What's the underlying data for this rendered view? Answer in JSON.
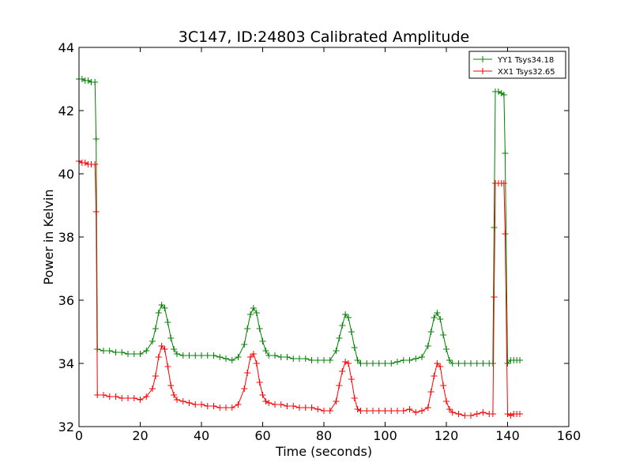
{
  "chart_data": {
    "type": "line",
    "title": "3C147, ID:24803 Calibrated Amplitude",
    "xlabel": "Time (seconds)",
    "ylabel": "Power in Kelvin",
    "xlim": [
      0,
      160
    ],
    "ylim": [
      32,
      44
    ],
    "xticks": [
      "0",
      "20",
      "40",
      "60",
      "80",
      "100",
      "120",
      "140",
      "160"
    ],
    "yticks": [
      "32",
      "34",
      "36",
      "38",
      "40",
      "42",
      "44"
    ],
    "grid": false,
    "legend_position": "top-right",
    "marker": "+",
    "series": [
      {
        "name": "YY1 Tsys34.18",
        "color": "#008000",
        "x": [
          0,
          1,
          2,
          3,
          4,
          5.2,
          5.6,
          6,
          8,
          10,
          12,
          14,
          16,
          18,
          20,
          22,
          24,
          25,
          26,
          27,
          28,
          29,
          30,
          31,
          32,
          34,
          36,
          38,
          40,
          42,
          44,
          46,
          48,
          50,
          52,
          54,
          55,
          56,
          57,
          58,
          59,
          60,
          61,
          62,
          64,
          66,
          68,
          70,
          72,
          74,
          76,
          78,
          80,
          82,
          84,
          85,
          86,
          87,
          88,
          89,
          90,
          91,
          92,
          94,
          96,
          98,
          100,
          102,
          104,
          106,
          108,
          110,
          112,
          114,
          115,
          116,
          117,
          118,
          119,
          120,
          121,
          122,
          124,
          126,
          128,
          130,
          132,
          134,
          135.2,
          135.6,
          136,
          137,
          138,
          138.8,
          139.2,
          140,
          141,
          142,
          143,
          144
        ],
        "y": [
          43.0,
          43.0,
          42.95,
          42.95,
          42.9,
          42.9,
          41.1,
          34.45,
          34.4,
          34.4,
          34.35,
          34.35,
          34.3,
          34.3,
          34.3,
          34.4,
          34.7,
          35.1,
          35.6,
          35.85,
          35.75,
          35.3,
          34.8,
          34.45,
          34.3,
          34.25,
          34.25,
          34.25,
          34.25,
          34.25,
          34.25,
          34.2,
          34.15,
          34.1,
          34.2,
          34.6,
          35.1,
          35.55,
          35.75,
          35.6,
          35.1,
          34.7,
          34.4,
          34.25,
          34.25,
          34.2,
          34.2,
          34.15,
          34.15,
          34.15,
          34.1,
          34.1,
          34.1,
          34.1,
          34.4,
          34.8,
          35.2,
          35.55,
          35.45,
          35.0,
          34.5,
          34.1,
          34.0,
          34.0,
          34.0,
          34.0,
          34.0,
          34.0,
          34.05,
          34.1,
          34.1,
          34.15,
          34.2,
          34.55,
          35.0,
          35.45,
          35.6,
          35.4,
          34.9,
          34.45,
          34.1,
          34.0,
          34.0,
          34.0,
          34.0,
          34.0,
          34.0,
          34.0,
          34.0,
          38.3,
          42.6,
          42.6,
          42.55,
          42.5,
          40.65,
          34.0,
          34.1,
          34.1,
          34.1,
          34.1
        ]
      },
      {
        "name": "XX1 Tsys32.65",
        "color": "#ff0000",
        "x": [
          0,
          1,
          2,
          3,
          4,
          5.2,
          5.6,
          6,
          8,
          10,
          12,
          14,
          16,
          18,
          20,
          22,
          24,
          25,
          26,
          27,
          28,
          29,
          30,
          31,
          32,
          34,
          36,
          38,
          40,
          42,
          44,
          46,
          48,
          50,
          52,
          54,
          55,
          56,
          57,
          58,
          59,
          60,
          61,
          62,
          64,
          66,
          68,
          70,
          72,
          74,
          76,
          78,
          80,
          82,
          84,
          85,
          86,
          87,
          88,
          89,
          90,
          91,
          92,
          94,
          96,
          98,
          100,
          102,
          104,
          106,
          108,
          110,
          112,
          114,
          115,
          116,
          117,
          118,
          119,
          120,
          121,
          122,
          124,
          126,
          128,
          130,
          132,
          134,
          135.2,
          135.6,
          136,
          137,
          138,
          138.8,
          139.2,
          140,
          141,
          142,
          143,
          144
        ],
        "y": [
          40.4,
          40.35,
          40.35,
          40.3,
          40.3,
          40.3,
          38.8,
          33.0,
          33.0,
          32.95,
          32.95,
          32.9,
          32.9,
          32.9,
          32.85,
          32.95,
          33.2,
          33.6,
          34.2,
          34.55,
          34.45,
          33.9,
          33.3,
          33.0,
          32.85,
          32.8,
          32.75,
          32.7,
          32.7,
          32.65,
          32.65,
          32.6,
          32.6,
          32.6,
          32.7,
          33.2,
          33.7,
          34.2,
          34.3,
          34.0,
          33.4,
          33.0,
          32.8,
          32.75,
          32.7,
          32.7,
          32.65,
          32.65,
          32.6,
          32.6,
          32.6,
          32.55,
          32.5,
          32.5,
          32.8,
          33.3,
          33.75,
          34.05,
          34.0,
          33.5,
          32.9,
          32.55,
          32.5,
          32.5,
          32.5,
          32.5,
          32.5,
          32.5,
          32.5,
          32.5,
          32.55,
          32.45,
          32.5,
          32.6,
          33.1,
          33.6,
          34.0,
          33.9,
          33.3,
          32.8,
          32.55,
          32.45,
          32.4,
          32.35,
          32.35,
          32.4,
          32.45,
          32.4,
          32.4,
          36.1,
          39.7,
          39.7,
          39.7,
          39.7,
          38.1,
          32.4,
          32.35,
          32.4,
          32.4,
          32.4
        ]
      }
    ]
  }
}
